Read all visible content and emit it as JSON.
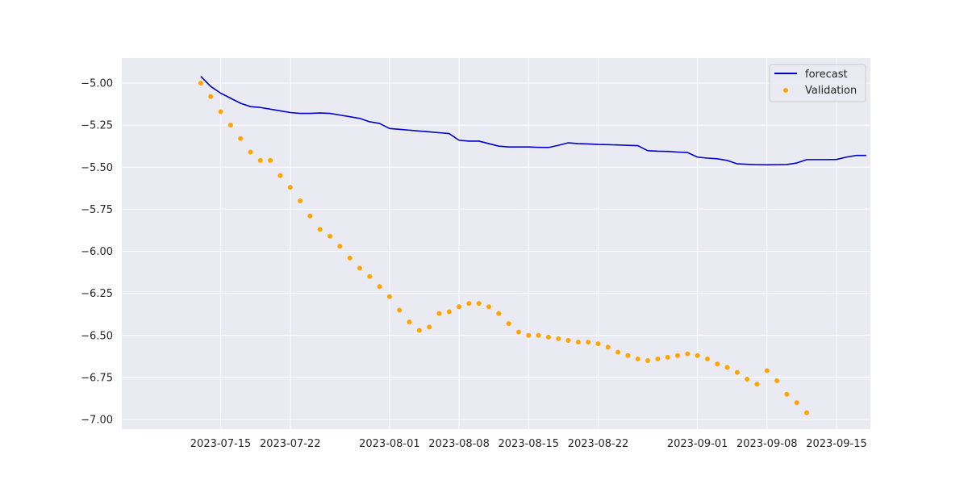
{
  "chart_data": {
    "type": "line",
    "title": "",
    "xlabel": "",
    "ylabel": "",
    "x_start": "2023-07-13",
    "xlim": [
      "2023-07-10",
      "2023-09-15"
    ],
    "ylim": [
      -7.05,
      -4.92
    ],
    "grid": true,
    "legend_position": "top-right",
    "x_ticks": [
      "2023-07-15",
      "2023-07-22",
      "2023-08-01",
      "2023-08-08",
      "2023-08-15",
      "2023-08-22",
      "2023-09-01",
      "2023-09-08",
      "2023-09-15"
    ],
    "y_ticks": [
      -5.0,
      -5.25,
      -5.5,
      -5.75,
      -6.0,
      -6.25,
      -6.5,
      -6.75,
      -7.0
    ],
    "y_tick_labels": [
      "−5.00",
      "−5.25",
      "−5.50",
      "−5.75",
      "−6.00",
      "−6.25",
      "−6.50",
      "−6.75",
      "−7.00"
    ],
    "colors": {
      "background": "#eaeaf2",
      "grid": "#ffffff",
      "forecast": "#0000cc",
      "validation": "#ffa500"
    },
    "series": [
      {
        "name": "forecast",
        "style": "line",
        "values": [
          -4.96,
          -5.02,
          -5.06,
          -5.09,
          -5.12,
          -5.14,
          -5.145,
          -5.155,
          -5.165,
          -5.175,
          -5.18,
          -5.18,
          -5.178,
          -5.18,
          -5.19,
          -5.2,
          -5.21,
          -5.23,
          -5.24,
          -5.27,
          -5.275,
          -5.28,
          -5.285,
          -5.29,
          -5.295,
          -5.3,
          -5.34,
          -5.345,
          -5.345,
          -5.36,
          -5.375,
          -5.38,
          -5.38,
          -5.38,
          -5.382,
          -5.383,
          -5.37,
          -5.355,
          -5.36,
          -5.362,
          -5.365,
          -5.366,
          -5.368,
          -5.37,
          -5.372,
          -5.402,
          -5.405,
          -5.406,
          -5.41,
          -5.413,
          -5.44,
          -5.446,
          -5.45,
          -5.46,
          -5.48,
          -5.483,
          -5.485,
          -5.486,
          -5.485,
          -5.484,
          -5.475,
          -5.455,
          -5.455,
          -5.455,
          -5.454,
          -5.44,
          -5.43,
          -5.43
        ]
      },
      {
        "name": "Validation",
        "style": "scatter",
        "values": [
          -5.0,
          -5.08,
          -5.17,
          -5.25,
          -5.33,
          -5.41,
          -5.46,
          -5.46,
          -5.55,
          -5.62,
          -5.7,
          -5.79,
          -5.87,
          -5.91,
          -5.97,
          -6.04,
          -6.1,
          -6.15,
          -6.21,
          -6.27,
          -6.35,
          -6.42,
          -6.47,
          -6.45,
          -6.37,
          -6.36,
          -6.33,
          -6.31,
          -6.31,
          -6.33,
          -6.37,
          -6.43,
          -6.48,
          -6.5,
          -6.5,
          -6.51,
          -6.52,
          -6.53,
          -6.54,
          -6.54,
          -6.55,
          -6.57,
          -6.6,
          -6.62,
          -6.64,
          -6.65,
          -6.64,
          -6.63,
          -6.62,
          -6.61,
          -6.62,
          -6.64,
          -6.67,
          -6.69,
          -6.72,
          -6.76,
          -6.79,
          -6.71,
          -6.77,
          -6.85,
          -6.9,
          -6.96
        ]
      }
    ]
  }
}
